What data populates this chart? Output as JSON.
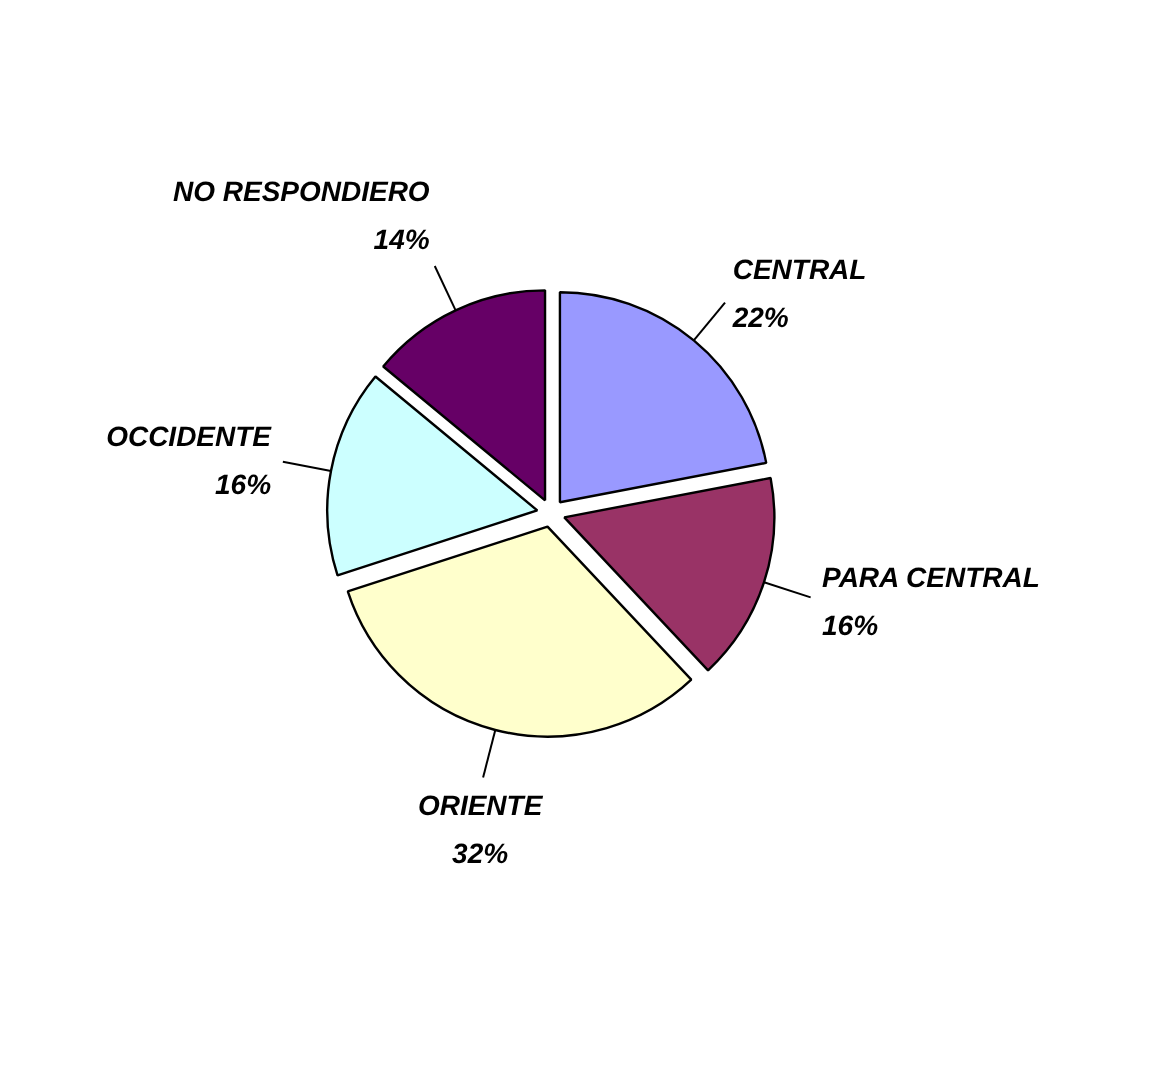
{
  "chart_data": {
    "type": "pie",
    "categories": [
      "CENTRAL",
      "PARA CENTRAL",
      "ORIENTE",
      "OCCIDENTE",
      "NO RESPONDIERO"
    ],
    "values": [
      22,
      16,
      32,
      16,
      14
    ],
    "colors": [
      "#9999ff",
      "#993366",
      "#ffffcc",
      "#ccffff",
      "#660066"
    ],
    "value_labels": [
      "22%",
      "16%",
      "32%",
      "16%",
      "14%"
    ],
    "legend": false
  }
}
